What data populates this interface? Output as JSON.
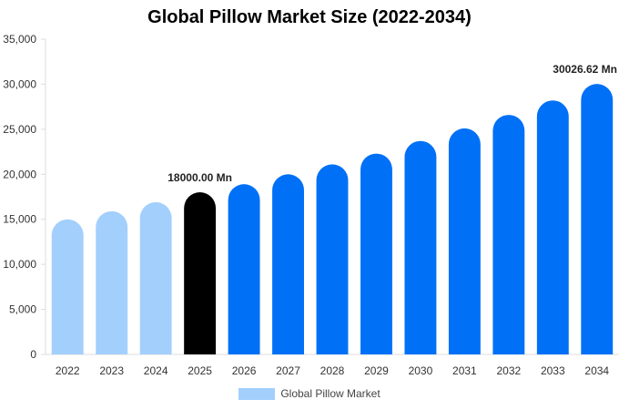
{
  "chart_data": {
    "type": "bar",
    "title": "Global Pillow Market Size (2022-2034)",
    "xlabel": "",
    "ylabel": "",
    "categories": [
      "2022",
      "2023",
      "2024",
      "2025",
      "2026",
      "2027",
      "2028",
      "2029",
      "2030",
      "2031",
      "2032",
      "2033",
      "2034"
    ],
    "series": [
      {
        "name": "Global Pillow Market",
        "values": [
          15000,
          15900,
          16900,
          18000,
          18900,
          20000,
          21100,
          22300,
          23700,
          25100,
          26600,
          28200,
          30026.62
        ]
      }
    ],
    "bar_colors": [
      "#a3cffd",
      "#a3cffd",
      "#a3cffd",
      "#000000",
      "#0070f7",
      "#0070f7",
      "#0070f7",
      "#0070f7",
      "#0070f7",
      "#0070f7",
      "#0070f7",
      "#0070f7",
      "#0070f7"
    ],
    "data_labels": [
      {
        "index": 3,
        "text": "18000.00 Mn"
      },
      {
        "index": 12,
        "text": "30026.62 Mn"
      }
    ],
    "ylim": [
      0,
      35000
    ],
    "yticks": [
      0,
      5000,
      10000,
      15000,
      20000,
      25000,
      30000,
      35000
    ],
    "ytick_labels": [
      "0",
      "5,000",
      "10,000",
      "15,000",
      "20,000",
      "25,000",
      "30,000",
      "35,000"
    ],
    "grid": false,
    "legend": {
      "position": "bottom",
      "label": "Global Pillow Market",
      "color": "#a3cffd"
    }
  }
}
